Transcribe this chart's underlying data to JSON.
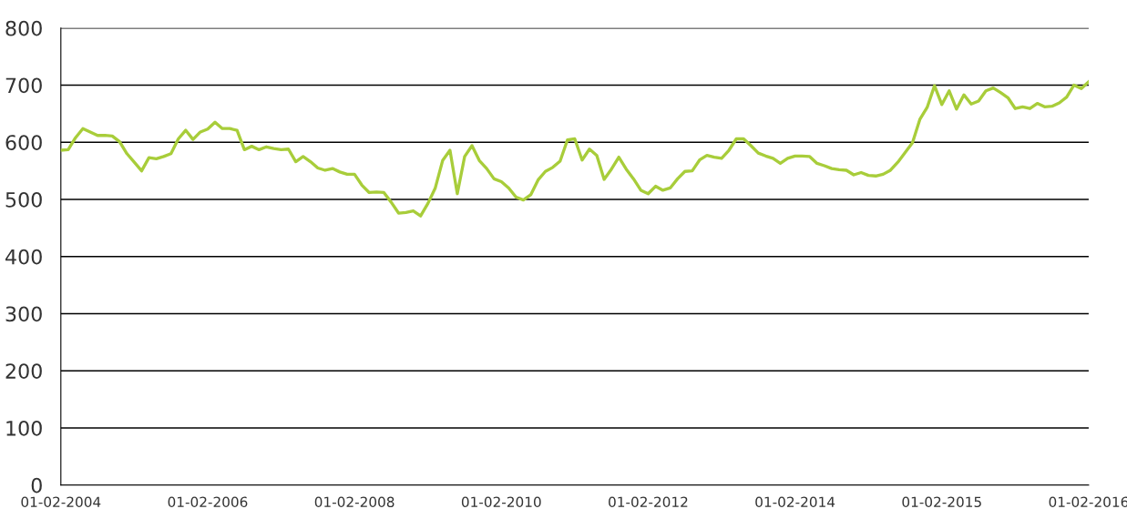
{
  "chart_data": {
    "type": "line",
    "ylim": [
      0,
      800
    ],
    "categories": [
      "01-02-2004",
      null,
      null,
      null,
      null,
      null,
      null,
      null,
      null,
      null,
      null,
      null,
      null,
      null,
      null,
      null,
      null,
      null,
      null,
      null,
      "01-02-2006",
      null,
      null,
      null,
      null,
      null,
      null,
      null,
      null,
      null,
      null,
      null,
      null,
      null,
      null,
      null,
      null,
      null,
      null,
      null,
      "01-02-2008",
      null,
      null,
      null,
      null,
      null,
      null,
      null,
      null,
      null,
      null,
      null,
      null,
      null,
      null,
      null,
      null,
      null,
      null,
      null,
      "01-02-2010",
      null,
      null,
      null,
      null,
      null,
      null,
      null,
      null,
      null,
      null,
      null,
      null,
      null,
      null,
      null,
      null,
      null,
      null,
      null,
      "01-02-2012",
      null,
      null,
      null,
      null,
      null,
      null,
      null,
      null,
      null,
      null,
      null,
      null,
      null,
      null,
      null,
      null,
      null,
      null,
      null,
      "01-02-2014",
      null,
      null,
      null,
      null,
      null,
      null,
      null,
      null,
      null,
      null,
      null,
      null,
      null,
      null,
      null,
      null,
      null,
      null,
      null,
      "01-02-2015",
      null,
      null,
      null,
      null,
      null,
      null,
      null,
      null,
      null,
      null,
      null,
      null,
      null,
      null,
      null,
      null,
      null,
      null,
      null,
      "01-02-2016"
    ],
    "yticks": [
      0,
      100,
      200,
      300,
      400,
      500,
      600,
      700,
      800
    ],
    "grid": "y",
    "marker": "none",
    "line_style": "solid",
    "series": [
      {
        "color": "#a8cd3a",
        "values": [
          586,
          587,
          608,
          624,
          618,
          612,
          612,
          611,
          601,
          580,
          565,
          550,
          573,
          571,
          575,
          580,
          606,
          621,
          605,
          618,
          623,
          635,
          624,
          624,
          621,
          587,
          593,
          587,
          592,
          589,
          587,
          588,
          566,
          575,
          566,
          555,
          551,
          554,
          548,
          544,
          544,
          525,
          512,
          513,
          512,
          495,
          476,
          477,
          480,
          471,
          493,
          520,
          568,
          586,
          510,
          575,
          594,
          568,
          554,
          536,
          531,
          520,
          504,
          499,
          508,
          534,
          549,
          556,
          567,
          604,
          606,
          569,
          588,
          577,
          535,
          553,
          574,
          553,
          536,
          516,
          510,
          523,
          516,
          520,
          536,
          549,
          550,
          569,
          577,
          574,
          572,
          586,
          606,
          606,
          594,
          581,
          576,
          572,
          563,
          572,
          576,
          576,
          575,
          563,
          559,
          554,
          552,
          551,
          543,
          547,
          542,
          541,
          544,
          551,
          565,
          582,
          599,
          640,
          661,
          699,
          666,
          690,
          658,
          683,
          667,
          672,
          690,
          695,
          687,
          678,
          659,
          662,
          659,
          668,
          662,
          663,
          669,
          679,
          700,
          694,
          706
        ]
      }
    ]
  }
}
